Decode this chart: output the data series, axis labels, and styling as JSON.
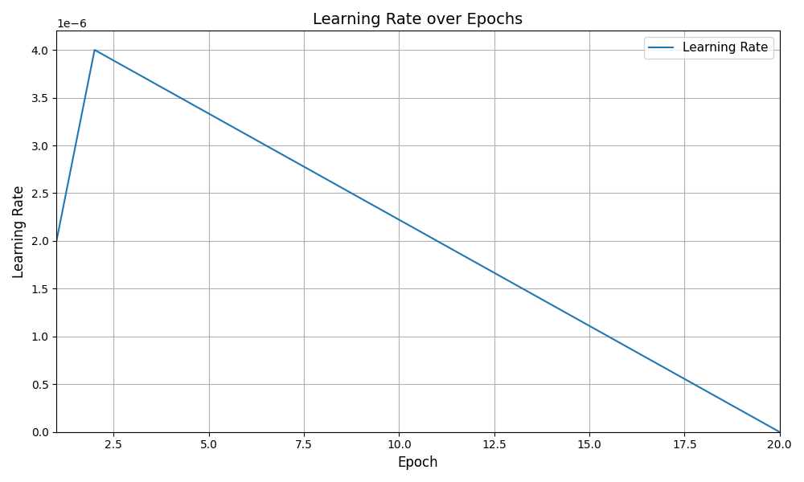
{
  "title": "Learning Rate over Epochs",
  "xlabel": "Epoch",
  "ylabel": "Learning Rate",
  "line_color": "#1f77b4",
  "line_label": "Learning Rate",
  "epochs": [
    1,
    2,
    20
  ],
  "lr": [
    2e-06,
    4e-06,
    0.0
  ],
  "xlim": [
    1.0,
    20.0
  ],
  "ylim": [
    0.0,
    4.2e-06
  ],
  "title_fontsize": 14,
  "axis_fontsize": 12,
  "legend_fontsize": 11,
  "figsize": [
    10,
    6
  ],
  "dpi": 100,
  "background_color": "white",
  "grid_color": "#b0b0b0",
  "grid_linestyle": "-",
  "grid_linewidth": 0.8,
  "line_linewidth": 1.5
}
